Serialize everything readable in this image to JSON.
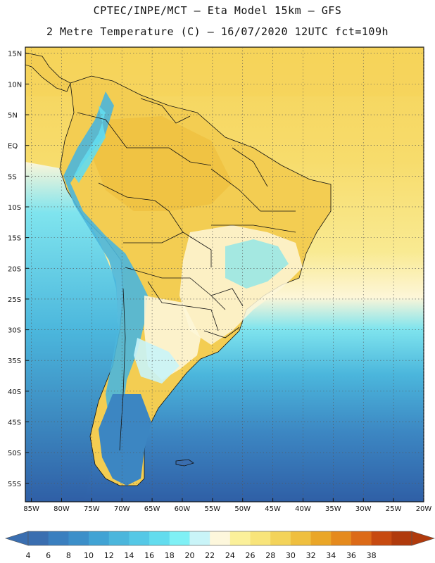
{
  "header": {
    "line1": "CPTEC/INPE/MCT –  Eta Model 15km – GFS",
    "line2": "2 Metre Temperature (C) – 16/07/2020 12UTC fct=109h"
  },
  "map": {
    "lon_labels": [
      "85W",
      "80W",
      "75W",
      "70W",
      "65W",
      "60W",
      "55W",
      "50W",
      "45W",
      "40W",
      "35W",
      "30W",
      "25W",
      "20W"
    ],
    "lat_labels": [
      "15N",
      "10N",
      "5N",
      "EQ",
      "5S",
      "10S",
      "15S",
      "20S",
      "25S",
      "30S",
      "35S",
      "40S",
      "45S",
      "50S",
      "55S"
    ],
    "lon_range": [
      -86,
      -20
    ],
    "lat_range": [
      -58,
      16
    ],
    "grid": true
  },
  "colorbar": {
    "ticks": [
      "4",
      "6",
      "8",
      "10",
      "12",
      "14",
      "16",
      "18",
      "20",
      "22",
      "24",
      "26",
      "28",
      "30",
      "32",
      "34",
      "36",
      "38"
    ],
    "colors": [
      "#3a6eb0",
      "#3a7fbf",
      "#3c8fc9",
      "#41a3d4",
      "#4bb6dc",
      "#55c8e6",
      "#63dcee",
      "#7ff0f5",
      "#c9f4f8",
      "#fdf7dc",
      "#fbf09a",
      "#f8e47a",
      "#f3d35a",
      "#efbf3f",
      "#eaa627",
      "#e58a1d",
      "#dc6a17",
      "#c74a10",
      "#b03a0c"
    ],
    "underflow_color": "#3a6eb0",
    "overflow_color": "#b03a0c"
  }
}
